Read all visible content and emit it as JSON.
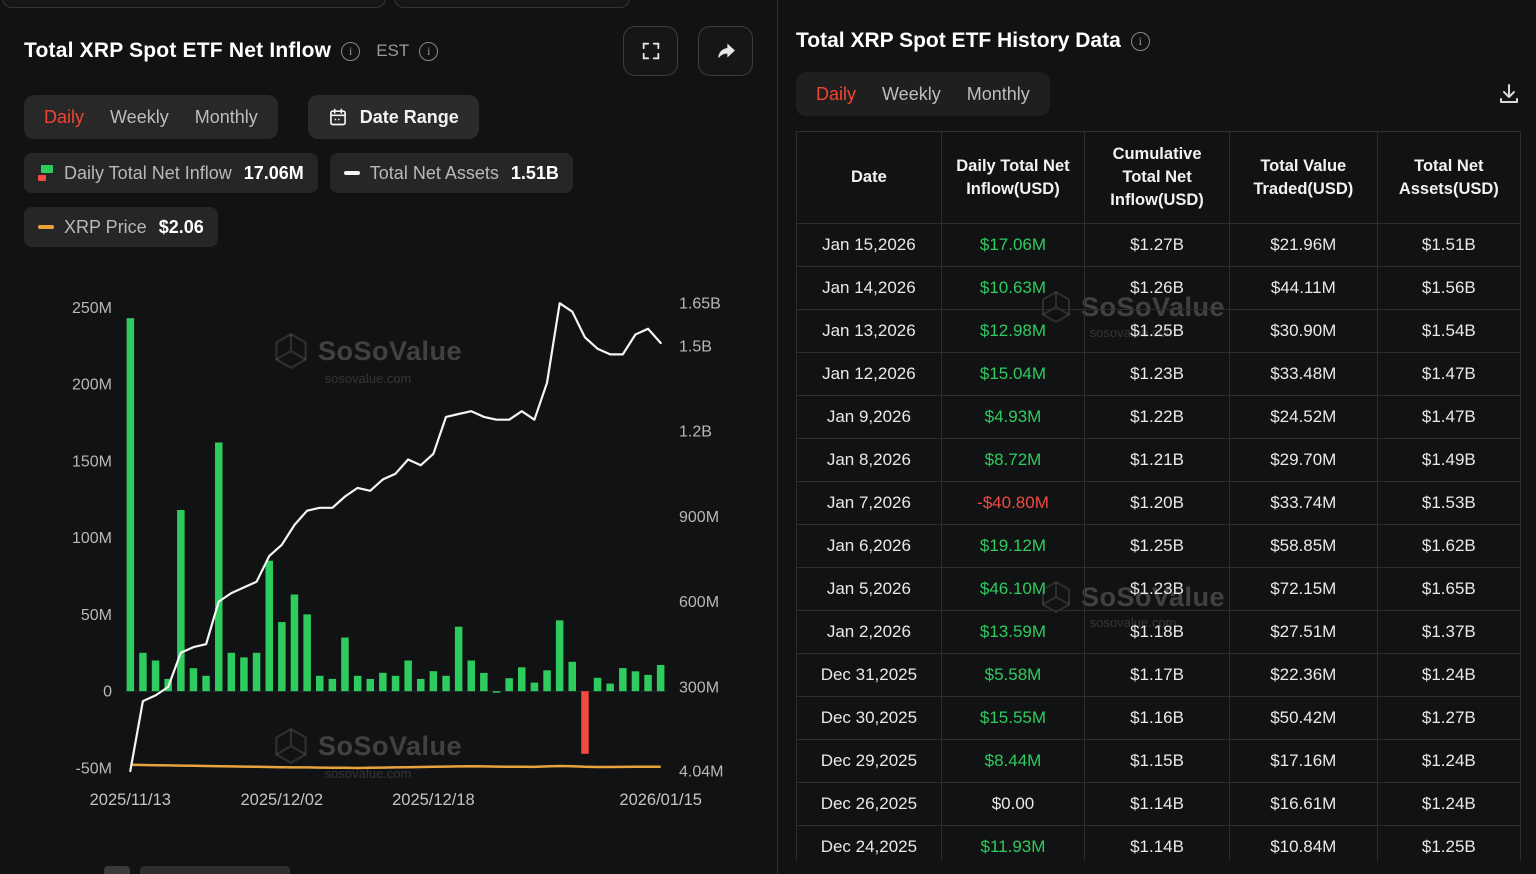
{
  "chart_panel": {
    "title": "Total XRP Spot ETF Net Inflow",
    "est_label": "EST",
    "tabs": {
      "items": [
        "Daily",
        "Weekly",
        "Monthly"
      ],
      "active": "Daily"
    },
    "date_range_label": "Date Range",
    "legend": {
      "inflow_label": "Daily Total Net Inflow",
      "inflow_value": "17.06M",
      "assets_label": "Total Net Assets",
      "assets_value": "1.51B",
      "price_label": "XRP Price",
      "price_value": "$2.06"
    }
  },
  "table_panel": {
    "title": "Total XRP Spot ETF History Data",
    "tabs": {
      "items": [
        "Daily",
        "Weekly",
        "Monthly"
      ],
      "active": "Daily"
    },
    "columns": [
      "Date",
      "Daily Total Net Inflow(USD)",
      "Cumulative Total Net Inflow(USD)",
      "Total Value Traded(USD)",
      "Total Net Assets(USD)"
    ],
    "rows": [
      {
        "date": "Jan 15,2026",
        "inflow": "$17.06M",
        "inflow_sign": "pos",
        "cumulative": "$1.27B",
        "traded": "$21.96M",
        "assets": "$1.51B"
      },
      {
        "date": "Jan 14,2026",
        "inflow": "$10.63M",
        "inflow_sign": "pos",
        "cumulative": "$1.26B",
        "traded": "$44.11M",
        "assets": "$1.56B"
      },
      {
        "date": "Jan 13,2026",
        "inflow": "$12.98M",
        "inflow_sign": "pos",
        "cumulative": "$1.25B",
        "traded": "$30.90M",
        "assets": "$1.54B"
      },
      {
        "date": "Jan 12,2026",
        "inflow": "$15.04M",
        "inflow_sign": "pos",
        "cumulative": "$1.23B",
        "traded": "$33.48M",
        "assets": "$1.47B"
      },
      {
        "date": "Jan 9,2026",
        "inflow": "$4.93M",
        "inflow_sign": "pos",
        "cumulative": "$1.22B",
        "traded": "$24.52M",
        "assets": "$1.47B"
      },
      {
        "date": "Jan 8,2026",
        "inflow": "$8.72M",
        "inflow_sign": "pos",
        "cumulative": "$1.21B",
        "traded": "$29.70M",
        "assets": "$1.49B"
      },
      {
        "date": "Jan 7,2026",
        "inflow": "-$40.80M",
        "inflow_sign": "neg",
        "cumulative": "$1.20B",
        "traded": "$33.74M",
        "assets": "$1.53B"
      },
      {
        "date": "Jan 6,2026",
        "inflow": "$19.12M",
        "inflow_sign": "pos",
        "cumulative": "$1.25B",
        "traded": "$58.85M",
        "assets": "$1.62B"
      },
      {
        "date": "Jan 5,2026",
        "inflow": "$46.10M",
        "inflow_sign": "pos",
        "cumulative": "$1.23B",
        "traded": "$72.15M",
        "assets": "$1.65B"
      },
      {
        "date": "Jan 2,2026",
        "inflow": "$13.59M",
        "inflow_sign": "pos",
        "cumulative": "$1.18B",
        "traded": "$27.51M",
        "assets": "$1.37B"
      },
      {
        "date": "Dec 31,2025",
        "inflow": "$5.58M",
        "inflow_sign": "pos",
        "cumulative": "$1.17B",
        "traded": "$22.36M",
        "assets": "$1.24B"
      },
      {
        "date": "Dec 30,2025",
        "inflow": "$15.55M",
        "inflow_sign": "pos",
        "cumulative": "$1.16B",
        "traded": "$50.42M",
        "assets": "$1.27B"
      },
      {
        "date": "Dec 29,2025",
        "inflow": "$8.44M",
        "inflow_sign": "pos",
        "cumulative": "$1.15B",
        "traded": "$17.16M",
        "assets": "$1.24B"
      },
      {
        "date": "Dec 26,2025",
        "inflow": "$0.00",
        "inflow_sign": "zero",
        "cumulative": "$1.14B",
        "traded": "$16.61M",
        "assets": "$1.24B"
      },
      {
        "date": "Dec 24,2025",
        "inflow": "$11.93M",
        "inflow_sign": "pos",
        "cumulative": "$1.14B",
        "traded": "$10.84M",
        "assets": "$1.25B"
      }
    ]
  },
  "watermark": {
    "brand": "SoSoValue",
    "domain": "sosovalue.com"
  },
  "chart_data": {
    "type": "combo",
    "title": "Total XRP Spot ETF Net Inflow",
    "x_dates": [
      "2025/11/13",
      "2025/11/14",
      "2025/11/17",
      "2025/11/18",
      "2025/11/19",
      "2025/11/20",
      "2025/11/21",
      "2025/11/24",
      "2025/11/25",
      "2025/11/26",
      "2025/11/28",
      "2025/12/01",
      "2025/12/02",
      "2025/12/03",
      "2025/12/04",
      "2025/12/05",
      "2025/12/08",
      "2025/12/09",
      "2025/12/10",
      "2025/12/11",
      "2025/12/12",
      "2025/12/15",
      "2025/12/16",
      "2025/12/17",
      "2025/12/18",
      "2025/12/19",
      "2025/12/22",
      "2025/12/23",
      "2025/12/24",
      "2025/12/26",
      "2025/12/29",
      "2025/12/30",
      "2025/12/31",
      "2026/01/02",
      "2026/01/05",
      "2026/01/06",
      "2026/01/07",
      "2026/01/08",
      "2026/01/09",
      "2026/01/12",
      "2026/01/13",
      "2026/01/14",
      "2026/01/15"
    ],
    "series": [
      {
        "name": "Daily Total Net Inflow",
        "type": "bar",
        "axis": "left",
        "unit": "M USD",
        "values": [
          243,
          25,
          20,
          8,
          118,
          15,
          10,
          162,
          25,
          22,
          25,
          85,
          45,
          63,
          50,
          10,
          8,
          35,
          10,
          8,
          12,
          10,
          20,
          8,
          13,
          10,
          42,
          20,
          11.93,
          0,
          8.44,
          15.55,
          5.58,
          13.59,
          46.1,
          19.12,
          -40.8,
          8.72,
          4.93,
          15.04,
          12.98,
          10.63,
          17.06
        ]
      },
      {
        "name": "Total Net Assets",
        "type": "line",
        "axis": "right",
        "unit": "B USD",
        "values": [
          0.004,
          0.25,
          0.27,
          0.3,
          0.42,
          0.44,
          0.45,
          0.6,
          0.63,
          0.65,
          0.67,
          0.76,
          0.8,
          0.87,
          0.92,
          0.93,
          0.93,
          0.97,
          1.0,
          0.99,
          1.03,
          1.05,
          1.1,
          1.08,
          1.12,
          1.25,
          1.26,
          1.27,
          1.25,
          1.24,
          1.24,
          1.27,
          1.24,
          1.37,
          1.65,
          1.62,
          1.53,
          1.49,
          1.47,
          1.47,
          1.54,
          1.56,
          1.51
        ]
      },
      {
        "name": "XRP Price",
        "type": "line",
        "axis": "hidden",
        "unit": "USD",
        "values": [
          2.3,
          2.28,
          2.25,
          2.22,
          2.2,
          2.18,
          2.15,
          2.12,
          2.1,
          2.08,
          2.05,
          2.02,
          2.0,
          1.98,
          1.97,
          1.95,
          1.93,
          1.92,
          1.9,
          1.92,
          1.95,
          1.97,
          2.0,
          2.02,
          2.05,
          2.08,
          2.1,
          2.12,
          2.1,
          2.08,
          2.06,
          2.05,
          2.04,
          2.1,
          2.15,
          2.12,
          2.05,
          2.03,
          2.02,
          2.04,
          2.05,
          2.06,
          2.06
        ]
      }
    ],
    "left_axis": {
      "ticks": [
        250,
        200,
        150,
        100,
        50,
        0,
        -50
      ],
      "tick_labels": [
        "250M",
        "200M",
        "150M",
        "100M",
        "50M",
        "0",
        "-50M"
      ],
      "ylim": [
        -52,
        262
      ],
      "unit": "M USD"
    },
    "right_axis": {
      "ticks": [
        1650,
        1500,
        1200,
        900,
        600,
        300,
        4.04
      ],
      "tick_labels": [
        "1.65B",
        "1.5B",
        "1.2B",
        "900M",
        "600M",
        "300M",
        "4.04M"
      ],
      "ylim": [
        4,
        1700
      ],
      "unit": "M USD"
    },
    "x_tick_labels": [
      "2025/11/13",
      "2025/12/02",
      "2025/12/18",
      "2026/01/15"
    ],
    "x_tick_indices": [
      0,
      12,
      24,
      42
    ],
    "grid": false,
    "legend_position": "top-left-chips",
    "colors": {
      "bar_pos": "#2ecc5e",
      "bar_neg": "#f14a42",
      "assets_line": "#f5f5f5",
      "price_line": "#e8a33d",
      "active_tab": "#f0452f"
    }
  }
}
